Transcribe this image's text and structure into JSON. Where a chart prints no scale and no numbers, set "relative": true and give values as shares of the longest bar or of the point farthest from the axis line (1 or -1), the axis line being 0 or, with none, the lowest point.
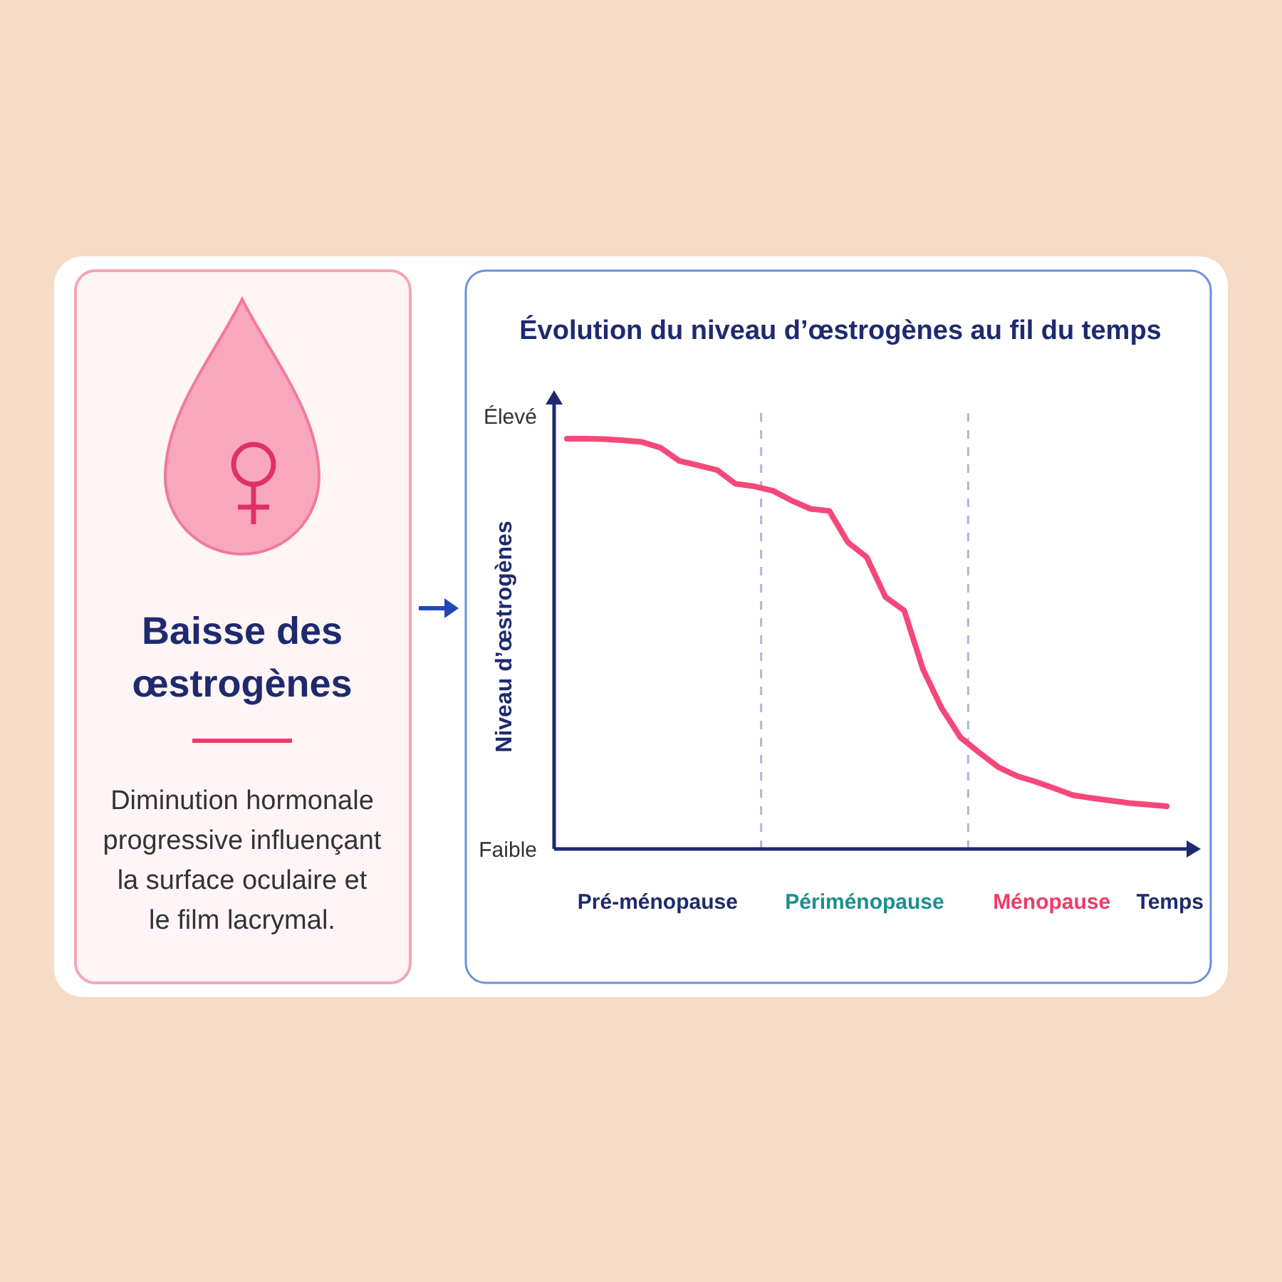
{
  "chart_data": [
    {
      "type": "other",
      "title": "Baisse des œstrogènes",
      "annotations": [
        "Diminution hormonale progressive influençant la surface oculaire et le film lacrymal."
      ]
    },
    {
      "type": "line",
      "title": "Évolution du niveau d’œstrogènes au fil du temps",
      "xlabel": "Temps",
      "ylabel": "Niveau d’œstrogènes",
      "relative": true,
      "line_style": "solid",
      "categories": [
        null,
        null,
        null,
        null,
        null,
        null,
        null,
        null,
        null,
        null,
        null,
        null,
        null,
        null,
        null,
        null,
        null,
        null,
        null,
        null,
        null,
        null,
        null,
        null,
        null,
        null,
        null,
        null,
        null,
        null,
        null,
        null,
        null
      ],
      "series": [
        {
          "color": "#f5487a",
          "values": [
            1,
            1,
            0.999,
            0.996,
            0.992,
            0.978,
            0.946,
            0.935,
            0.924,
            0.89,
            0.884,
            0.873,
            0.849,
            0.829,
            0.824,
            0.747,
            0.711,
            0.614,
            0.581,
            0.438,
            0.343,
            0.272,
            0.235,
            0.2,
            0.178,
            0.164,
            0.148,
            0.131,
            0.124,
            0.118,
            0.112,
            0.108,
            0.104
          ]
        }
      ],
      "annotations": [
        "Élevé",
        "Faible",
        "Pré-ménopause",
        "Périménopause",
        "Ménopause"
      ]
    }
  ]
}
